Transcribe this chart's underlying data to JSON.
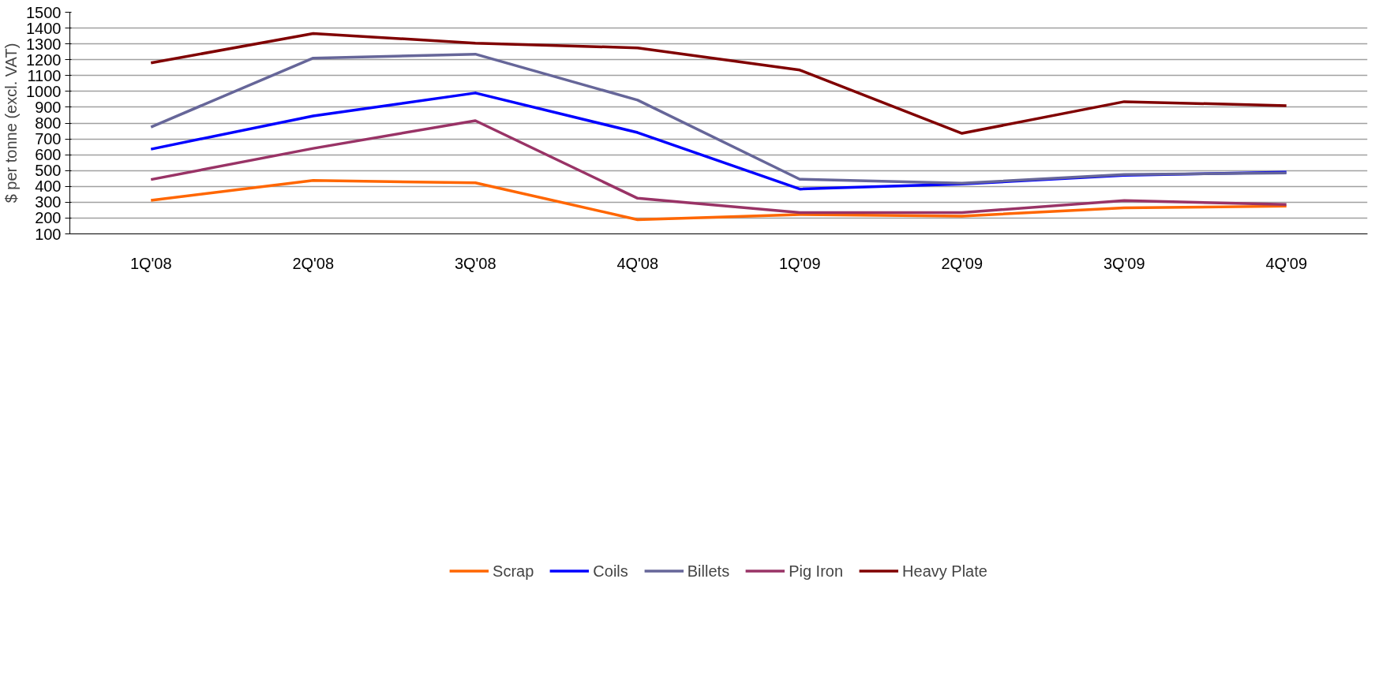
{
  "chart_data": {
    "type": "line",
    "ylabel": "$ per tonne (excl. VAT)",
    "categories": [
      "1Q'08",
      "2Q'08",
      "3Q'08",
      "4Q'08",
      "1Q'09",
      "2Q'09",
      "3Q'09",
      "4Q'09"
    ],
    "series": [
      {
        "name": "Scrap",
        "color": "#ff6600",
        "values": [
          312,
          437,
          423,
          190,
          222,
          212,
          265,
          275
        ]
      },
      {
        "name": "Coils",
        "color": "#0000ff",
        "values": [
          635,
          845,
          990,
          740,
          383,
          415,
          470,
          490
        ]
      },
      {
        "name": "Billets",
        "color": "#666699",
        "values": [
          775,
          1210,
          1235,
          945,
          445,
          420,
          475,
          485
        ]
      },
      {
        "name": "Pig Iron",
        "color": "#993366",
        "values": [
          443,
          640,
          815,
          325,
          235,
          235,
          310,
          285
        ]
      },
      {
        "name": "Heavy Plate",
        "color": "#800000",
        "values": [
          1180,
          1365,
          1305,
          1275,
          1135,
          735,
          935,
          910
        ]
      }
    ],
    "ylim": [
      100,
      1500
    ],
    "yticks": [
      100,
      200,
      300,
      400,
      500,
      600,
      700,
      800,
      900,
      1000,
      1100,
      1200,
      1300,
      1400,
      1500
    ],
    "grid": "y",
    "legend": "bottom"
  }
}
